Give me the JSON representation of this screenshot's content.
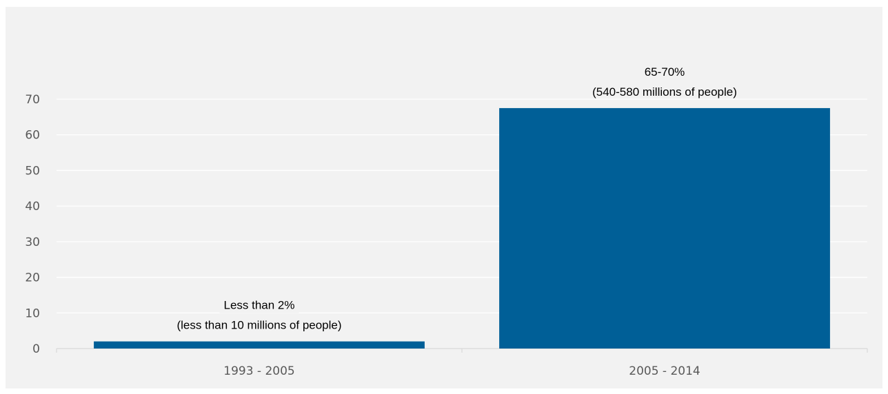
{
  "chart_data": {
    "type": "bar",
    "categories": [
      "1993 - 2005",
      "2005 - 2014"
    ],
    "values": [
      2,
      67.5
    ],
    "ylim": [
      0,
      70
    ],
    "yticks": [
      0,
      10,
      20,
      30,
      40,
      50,
      60,
      70
    ],
    "grid": true,
    "legend": "none",
    "data_labels": [
      [
        "Less than 2%",
        "(less than 10 millions of people)"
      ],
      [
        "65-70%",
        "(540-580 millions of people)"
      ]
    ],
    "colors": {
      "bar": "#005f97",
      "background": "#f2f2f2",
      "grid": "#ffffff",
      "axis": "#d9d9d9",
      "tick_text": "#595959"
    }
  }
}
